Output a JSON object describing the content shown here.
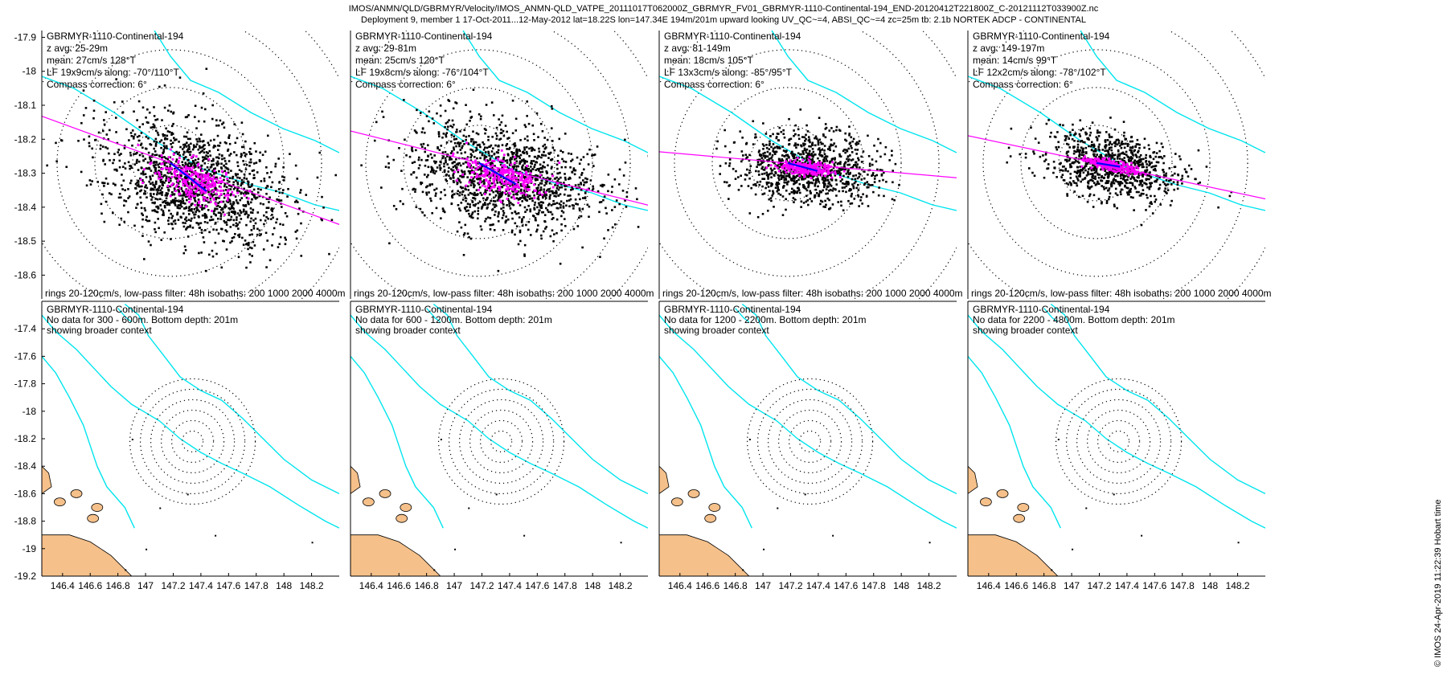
{
  "header": {
    "line1": "IMOS/ANMN/QLD/GBRMYR/Velocity/IMOS_ANMN-QLD_VATPE_20111017T062000Z_GBRMYR_FV01_GBRMYR-1110-Continental-194_END-20120412T221800Z_C-20121112T033900Z.nc",
    "line2": "Deployment 9, member 1 17-Oct-2011...12-May-2012 lat=18.22S lon=147.34E 194m/201m upward looking UV_QC~=4, ABSI_QC~=4 zc=25m tb: 2.1b NORTEK ADCP - CONTINENTAL"
  },
  "stamp": "© IMOS 24-Apr-2019 11:22:39 Hobart time",
  "colors": {
    "scatter": "#000000",
    "lowpass": "#ff00ff",
    "mean_arrow": "#0000ff",
    "isobath": "#00e5ee",
    "land": "#f5c08a",
    "rings": "#000000"
  },
  "chart_data": [
    {
      "type": "scatter",
      "row": "top",
      "lines": [
        "GBRMYR-1110-Continental-194",
        "z avg: 25-29m",
        "mean: 27cm/s 128°T",
        "LF 19x9cm/s along: -70°/110°T",
        "Compass correction: 6°"
      ],
      "footer": "rings 20-120cm/s, low-pass filter: 48h isobaths: 200 1000 2000 4000m",
      "yticks": [
        "-17.9",
        "-18",
        "-18.1",
        "-18.2",
        "-18.3",
        "-18.4",
        "-18.5",
        "-18.6"
      ],
      "ylim": [
        -18.67,
        -17.88
      ],
      "mean_speed_cm_s": 27,
      "mean_dir_degT": 128,
      "lf_major_cm_s": 19,
      "lf_minor_cm_s": 9,
      "along_dir_degT": 110
    },
    {
      "type": "scatter",
      "row": "top",
      "lines": [
        "GBRMYR-1110-Continental-194",
        "z avg: 29-81m",
        "mean: 25cm/s 120°T",
        "LF 19x8cm/s along: -76°/104°T",
        "Compass correction: 6°"
      ],
      "footer": "rings 20-120cm/s, low-pass filter: 48h isobaths: 200 1000 2000 4000m",
      "mean_speed_cm_s": 25,
      "mean_dir_degT": 120,
      "lf_major_cm_s": 19,
      "lf_minor_cm_s": 8,
      "along_dir_degT": 104
    },
    {
      "type": "scatter",
      "row": "top",
      "lines": [
        "GBRMYR-1110-Continental-194",
        "z avg: 81-149m",
        "mean: 18cm/s 105°T",
        "LF 13x3cm/s along: -85°/95°T",
        "Compass correction: 6°"
      ],
      "footer": "rings 20-120cm/s, low-pass filter: 48h isobaths: 200 1000 2000 4000m",
      "mean_speed_cm_s": 18,
      "mean_dir_degT": 105,
      "lf_major_cm_s": 13,
      "lf_minor_cm_s": 3,
      "along_dir_degT": 95
    },
    {
      "type": "scatter",
      "row": "top",
      "lines": [
        "GBRMYR-1110-Continental-194",
        "z avg: 149-197m",
        "mean: 14cm/s 99°T",
        "LF 12x2cm/s along: -78°/102°T",
        "Compass correction: 6°"
      ],
      "footer": "rings 20-120cm/s, low-pass filter: 48h isobaths: 200 1000 2000 4000m",
      "mean_speed_cm_s": 14,
      "mean_dir_degT": 99,
      "lf_major_cm_s": 12,
      "lf_minor_cm_s": 2,
      "along_dir_degT": 102
    },
    {
      "type": "map",
      "row": "bottom",
      "lines": [
        "GBRMYR-1110-Continental-194",
        "No data for 300 - 600m. Bottom depth: 201m",
        "showing broader context"
      ],
      "xticks": [
        "146.4",
        "146.6",
        "146.8",
        "147",
        "147.2",
        "147.4",
        "147.6",
        "147.8",
        "148",
        "148.2"
      ],
      "xlim": [
        146.25,
        148.4
      ],
      "yticks": [
        "-17.4",
        "-17.6",
        "-17.8",
        "-18",
        "-18.2",
        "-18.4",
        "-18.6",
        "-18.8",
        "-19",
        "-19.2"
      ],
      "ylim": [
        -19.2,
        -17.2
      ]
    },
    {
      "type": "map",
      "row": "bottom",
      "lines": [
        "GBRMYR-1110-Continental-194",
        "No data for 600 - 1200m. Bottom depth: 201m",
        "showing broader context"
      ],
      "xticks": [
        "146.4",
        "146.6",
        "146.8",
        "147",
        "147.2",
        "147.4",
        "147.6",
        "147.8",
        "148",
        "148.2"
      ],
      "xlim": [
        146.25,
        148.4
      ]
    },
    {
      "type": "map",
      "row": "bottom",
      "lines": [
        "GBRMYR-1110-Continental-194",
        "No data for 1200 - 2200m. Bottom depth: 201m",
        "showing broader context"
      ],
      "xticks": [
        "146.4",
        "146.6",
        "146.8",
        "147",
        "147.2",
        "147.4",
        "147.6",
        "147.8",
        "148",
        "148.2"
      ],
      "xlim": [
        146.25,
        148.4
      ]
    },
    {
      "type": "map",
      "row": "bottom",
      "lines": [
        "GBRMYR-1110-Continental-194",
        "No data for 2200 - 4800m. Bottom depth: 201m",
        "showing broader context"
      ],
      "xticks": [
        "146.4",
        "146.6",
        "146.8",
        "147",
        "147.2",
        "147.4",
        "147.6",
        "147.8",
        "148",
        "148.2"
      ],
      "xlim": [
        146.25,
        148.4
      ]
    }
  ]
}
